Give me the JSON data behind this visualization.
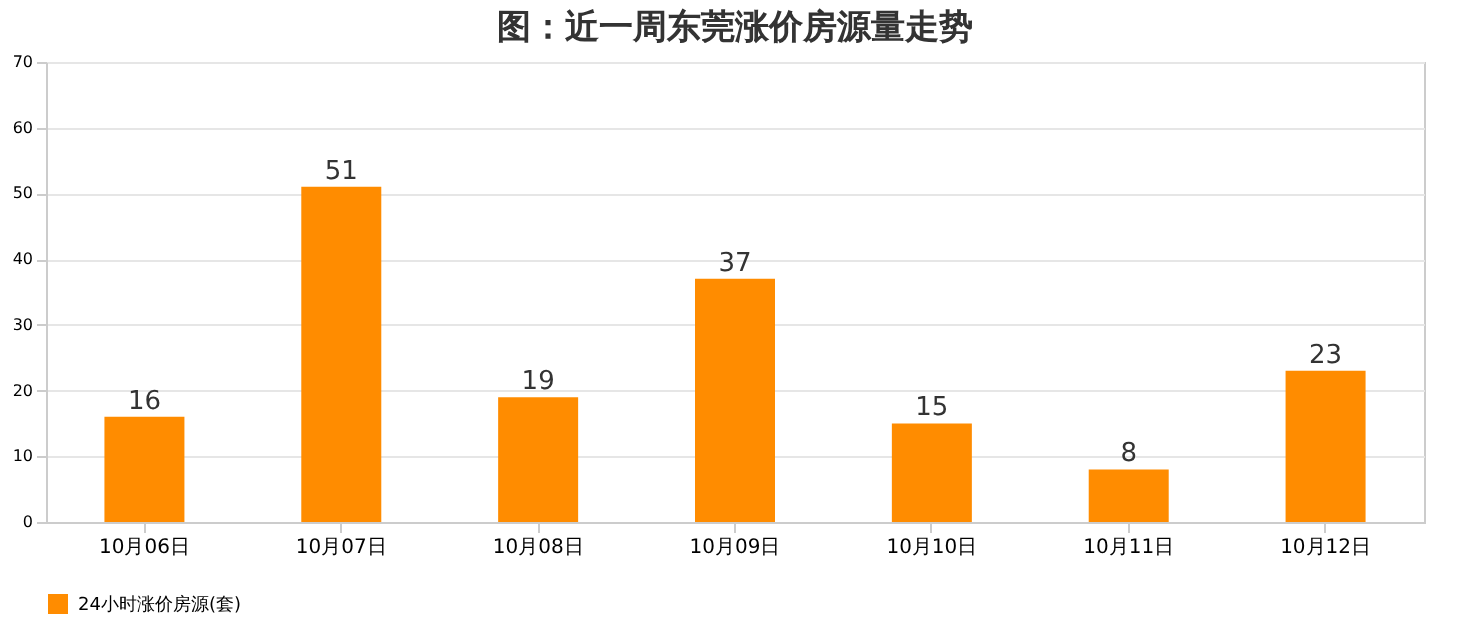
{
  "chart_data": {
    "type": "bar",
    "title": "图：近一周东莞涨价房源量走势",
    "categories": [
      "10月06日",
      "10月07日",
      "10月08日",
      "10月09日",
      "10月10日",
      "10月11日",
      "10月12日"
    ],
    "series": [
      {
        "name": "24小时涨价房源(套)",
        "color": "#ff8c00",
        "values": [
          16,
          51,
          19,
          37,
          15,
          8,
          23
        ]
      }
    ],
    "ylim": [
      0,
      70
    ],
    "yticks": [
      0,
      10,
      20,
      30,
      40,
      50,
      60,
      70
    ],
    "grid": "y",
    "legend": "bottom",
    "data_labels": true
  }
}
